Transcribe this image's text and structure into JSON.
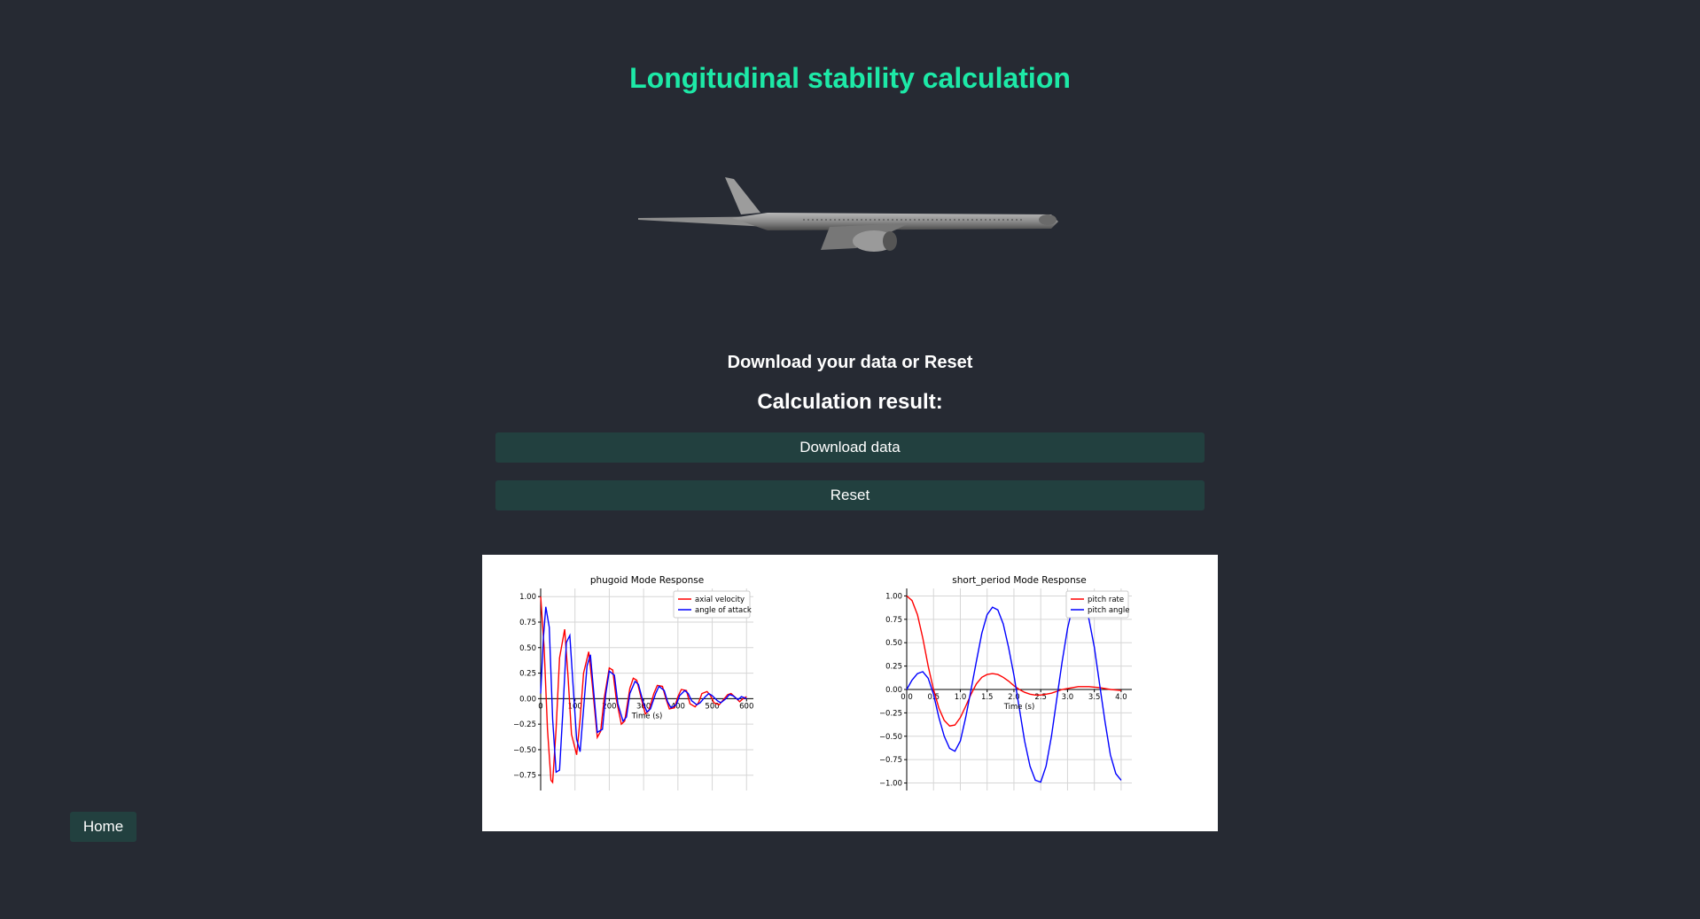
{
  "page": {
    "title": "Longitudinal stability calculation",
    "subtitle": "Download your data or Reset",
    "result_title": "Calculation result:"
  },
  "buttons": {
    "download": "Download data",
    "reset": "Reset",
    "home": "Home"
  },
  "colors": {
    "background": "#262a33",
    "accent": "#1de9a7",
    "button": "#22403f"
  },
  "chart_data": [
    {
      "type": "line",
      "title": "phugoid Mode Response",
      "xlabel": "Time (s)",
      "ylabel": "",
      "xlim": [
        0,
        620
      ],
      "ylim": [
        -0.9,
        1.08
      ],
      "xticks": [
        0,
        100,
        200,
        300,
        400,
        500,
        600
      ],
      "yticks": [
        -0.75,
        -0.5,
        -0.25,
        0.0,
        0.25,
        0.5,
        0.75,
        1.0
      ],
      "ytick_labels": [
        "−0.75",
        "−0.50",
        "−0.25",
        "0.00",
        "0.25",
        "0.50",
        "0.75",
        "1.00"
      ],
      "grid": true,
      "legend": "top-right",
      "series": [
        {
          "name": "axial velocity",
          "color": "#ff0000",
          "x": [
            0,
            10,
            20,
            30,
            35,
            45,
            55,
            70,
            80,
            90,
            105,
            115,
            125,
            140,
            150,
            165,
            175,
            185,
            200,
            210,
            220,
            235,
            245,
            260,
            270,
            280,
            295,
            305,
            315,
            330,
            340,
            355,
            365,
            375,
            390,
            400,
            410,
            425,
            435,
            450,
            460,
            470,
            485,
            495,
            505,
            520,
            530,
            545,
            555,
            565,
            580,
            590,
            600
          ],
          "y": [
            1.0,
            0.5,
            -0.3,
            -0.8,
            -0.82,
            -0.3,
            0.4,
            0.68,
            0.2,
            -0.35,
            -0.55,
            -0.2,
            0.25,
            0.46,
            0.15,
            -0.38,
            -0.32,
            0.0,
            0.3,
            0.28,
            0.0,
            -0.25,
            -0.22,
            0.1,
            0.2,
            0.18,
            -0.02,
            -0.15,
            -0.12,
            0.05,
            0.13,
            0.12,
            0.0,
            -0.1,
            -0.09,
            0.02,
            0.09,
            0.08,
            -0.05,
            -0.08,
            -0.04,
            0.05,
            0.07,
            0.03,
            -0.04,
            -0.06,
            -0.02,
            0.04,
            0.05,
            0.02,
            -0.03,
            0.0,
            0.02
          ]
        },
        {
          "name": "angle of attack",
          "color": "#0000ff",
          "x": [
            0,
            8,
            15,
            25,
            35,
            45,
            55,
            65,
            75,
            85,
            95,
            105,
            115,
            125,
            135,
            145,
            155,
            165,
            180,
            190,
            200,
            215,
            225,
            240,
            250,
            260,
            275,
            285,
            300,
            310,
            320,
            335,
            345,
            360,
            370,
            380,
            395,
            405,
            420,
            430,
            440,
            455,
            465,
            480,
            490,
            500,
            515,
            525,
            540,
            550,
            560,
            575,
            585,
            600
          ],
          "y": [
            0.05,
            0.6,
            0.9,
            0.7,
            -0.2,
            -0.72,
            -0.7,
            -0.1,
            0.55,
            0.62,
            0.1,
            -0.4,
            -0.52,
            -0.1,
            0.32,
            0.43,
            0.05,
            -0.33,
            -0.3,
            0.05,
            0.27,
            0.23,
            -0.05,
            -0.22,
            -0.18,
            0.05,
            0.17,
            0.14,
            -0.05,
            -0.13,
            -0.1,
            0.05,
            0.12,
            0.08,
            -0.03,
            -0.09,
            -0.06,
            0.03,
            0.08,
            0.05,
            -0.02,
            -0.06,
            -0.04,
            0.02,
            0.05,
            0.03,
            -0.02,
            -0.04,
            0.0,
            0.04,
            0.03,
            -0.01,
            0.02,
            0.0
          ]
        }
      ]
    },
    {
      "type": "line",
      "title": "short_period Mode Response",
      "xlabel": "Time (s)",
      "ylabel": "",
      "xlim": [
        0,
        4.2
      ],
      "ylim": [
        -1.08,
        1.08
      ],
      "xticks": [
        0,
        0.5,
        1.0,
        1.5,
        2.0,
        2.5,
        3.0,
        3.5,
        4.0
      ],
      "yticks": [
        -1.0,
        -0.75,
        -0.5,
        -0.25,
        0.0,
        0.25,
        0.5,
        0.75,
        1.0
      ],
      "ytick_labels": [
        "−1.00",
        "−0.75",
        "−0.50",
        "−0.25",
        "0.00",
        "0.25",
        "0.50",
        "0.75",
        "1.00"
      ],
      "grid": true,
      "legend": "top-right",
      "series": [
        {
          "name": "pitch rate",
          "color": "#ff0000",
          "x": [
            0,
            0.1,
            0.2,
            0.3,
            0.4,
            0.5,
            0.6,
            0.7,
            0.8,
            0.9,
            1.0,
            1.1,
            1.2,
            1.3,
            1.4,
            1.5,
            1.6,
            1.7,
            1.8,
            1.9,
            2.0,
            2.1,
            2.2,
            2.3,
            2.4,
            2.5,
            2.6,
            2.7,
            2.8,
            2.9,
            3.0,
            3.2,
            3.4,
            3.6,
            3.8,
            4.0
          ],
          "y": [
            1.0,
            0.95,
            0.8,
            0.55,
            0.25,
            0.0,
            -0.2,
            -0.33,
            -0.39,
            -0.38,
            -0.3,
            -0.18,
            -0.05,
            0.06,
            0.13,
            0.16,
            0.17,
            0.16,
            0.13,
            0.09,
            0.04,
            0.0,
            -0.03,
            -0.05,
            -0.06,
            -0.06,
            -0.05,
            -0.04,
            -0.02,
            0.0,
            0.01,
            0.03,
            0.03,
            0.02,
            0.0,
            -0.01
          ]
        },
        {
          "name": "pitch angle",
          "color": "#0000ff",
          "x": [
            0,
            0.1,
            0.2,
            0.3,
            0.4,
            0.5,
            0.6,
            0.7,
            0.8,
            0.9,
            1.0,
            1.1,
            1.2,
            1.3,
            1.4,
            1.5,
            1.6,
            1.7,
            1.8,
            1.9,
            2.0,
            2.1,
            2.2,
            2.3,
            2.4,
            2.5,
            2.6,
            2.7,
            2.8,
            2.9,
            3.0,
            3.1,
            3.2,
            3.3,
            3.4,
            3.5,
            3.6,
            3.7,
            3.8,
            3.9,
            4.0
          ],
          "y": [
            0.0,
            0.1,
            0.17,
            0.19,
            0.12,
            -0.05,
            -0.3,
            -0.5,
            -0.63,
            -0.66,
            -0.55,
            -0.3,
            0.0,
            0.3,
            0.6,
            0.8,
            0.88,
            0.85,
            0.7,
            0.45,
            0.15,
            -0.2,
            -0.55,
            -0.82,
            -0.97,
            -0.99,
            -0.82,
            -0.5,
            -0.1,
            0.3,
            0.65,
            0.9,
            1.0,
            0.95,
            0.75,
            0.45,
            0.05,
            -0.35,
            -0.7,
            -0.9,
            -0.97
          ]
        }
      ]
    }
  ]
}
